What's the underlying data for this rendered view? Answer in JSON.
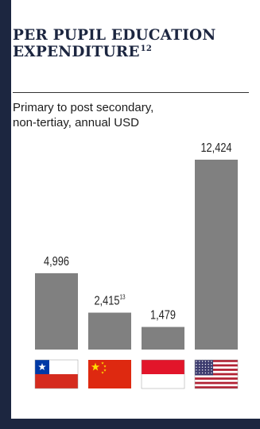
{
  "header": {
    "title_line1": "PER PUPIL EDUCATION",
    "title_line2": "EXPENDITURE",
    "title_sup": "12",
    "subtitle_line1": "Primary to post secondary,",
    "subtitle_line2": "non-tertiay, annual USD"
  },
  "colors": {
    "bar": "#808080",
    "frame": "#1c2640",
    "title": "#1c2640"
  },
  "chart_data": {
    "type": "bar",
    "title": "PER PUPIL EDUCATION EXPENDITURE",
    "subtitle": "Primary to post secondary, non-tertiay, annual USD",
    "categories": [
      "chile-flag-icon",
      "china-flag-icon",
      "indonesia-flag-icon",
      "usa-flag-icon"
    ],
    "values": [
      4996,
      2415,
      1479,
      12424
    ],
    "labels": [
      "4,996",
      "2,415",
      "1,479",
      "12,424"
    ],
    "label_superscripts": [
      "",
      "13",
      "",
      ""
    ],
    "ylim": [
      0,
      12424
    ],
    "grid": false,
    "legend": "none"
  }
}
